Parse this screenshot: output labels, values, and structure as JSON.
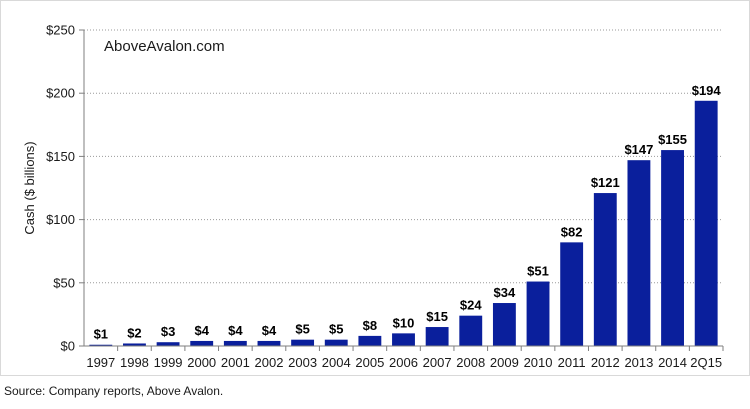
{
  "chart_data": {
    "type": "bar",
    "title": "",
    "xlabel": "",
    "ylabel": "Cash ($ billions)",
    "ylim": [
      0,
      250
    ],
    "yticks": [
      0,
      50,
      100,
      150,
      200,
      250
    ],
    "ytick_labels": [
      "$0",
      "$50",
      "$100",
      "$150",
      "$200",
      "$250"
    ],
    "grid": "horizontal dotted",
    "bar_color": "#0a1f9c",
    "categories": [
      "1997",
      "1998",
      "1999",
      "2000",
      "2001",
      "2002",
      "2003",
      "2004",
      "2005",
      "2006",
      "2007",
      "2008",
      "2009",
      "2010",
      "2011",
      "2012",
      "2013",
      "2014",
      "2Q15"
    ],
    "values": [
      1,
      2,
      3,
      4,
      4,
      4,
      5,
      5,
      8,
      10,
      15,
      24,
      34,
      51,
      82,
      121,
      147,
      155,
      194
    ],
    "data_labels": [
      "$1",
      "$2",
      "$3",
      "$4",
      "$4",
      "$4",
      "$5",
      "$5",
      "$8",
      "$10",
      "$15",
      "$24",
      "$34",
      "$51",
      "$82",
      "$121",
      "$147",
      "$155",
      "$194"
    ]
  },
  "watermark": "AboveAvalon.com",
  "source": "Source: Company reports, Above Avalon."
}
